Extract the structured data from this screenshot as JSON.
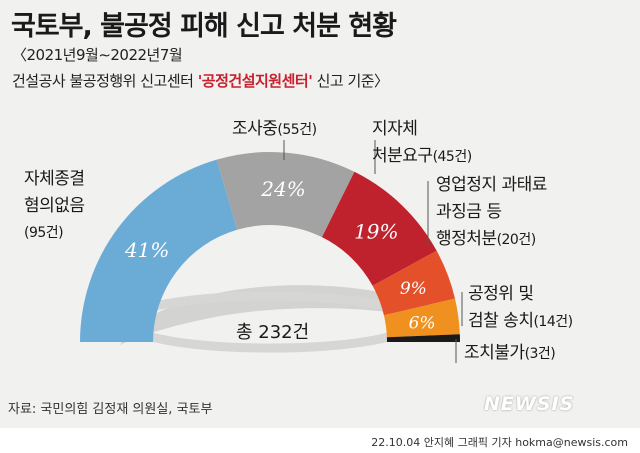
{
  "title": "국토부, 불공정 피해 신고 처분 현황",
  "subtitle_period": "〈2021년9월∼2022년7월",
  "subtitle_basis_pre": "건설공사 불공정행위 신고센터 ",
  "subtitle_basis_highlight": "'공정건설지원센터'",
  "subtitle_basis_post": " 신고 기준〉",
  "total_label": "총 232건",
  "source": "자료: 국민의힘 김정재 의원실, 국토부",
  "watermark": "NEWSIS",
  "credit": "22.10.04 안지혜 그래픽 기자 hokma@newsis.com",
  "colors": {
    "accent": "#c8202e",
    "background": "#f1f1ef"
  },
  "chart_data": {
    "type": "pie",
    "shape": "semicircle-donut",
    "total": 232,
    "slices": [
      {
        "lines": [
          "자체종결",
          "혐의없음"
        ],
        "count_label": "(95건)",
        "value": 95,
        "percent_label": "41%",
        "color": "#6aacd6"
      },
      {
        "lines": [
          "조사중"
        ],
        "count_label": "(55건)",
        "value": 55,
        "percent_label": "24%",
        "color": "#a3a3a3"
      },
      {
        "lines": [
          "지자체",
          "처분요구"
        ],
        "count_label": "(45건)",
        "value": 45,
        "percent_label": "19%",
        "color": "#c0222d"
      },
      {
        "lines": [
          "영업정지 과태료",
          "과징금 등",
          "행정처분"
        ],
        "count_label": "(20건)",
        "value": 20,
        "percent_label": "9%",
        "color": "#e4502a"
      },
      {
        "lines": [
          "공정위 및",
          "검찰 송치"
        ],
        "count_label": "(14건)",
        "value": 14,
        "percent_label": "6%",
        "color": "#f0901f"
      },
      {
        "lines": [
          "조치불가"
        ],
        "count_label": "(3건)",
        "value": 3,
        "percent_label": "",
        "color": "#1a1a1a"
      }
    ]
  }
}
